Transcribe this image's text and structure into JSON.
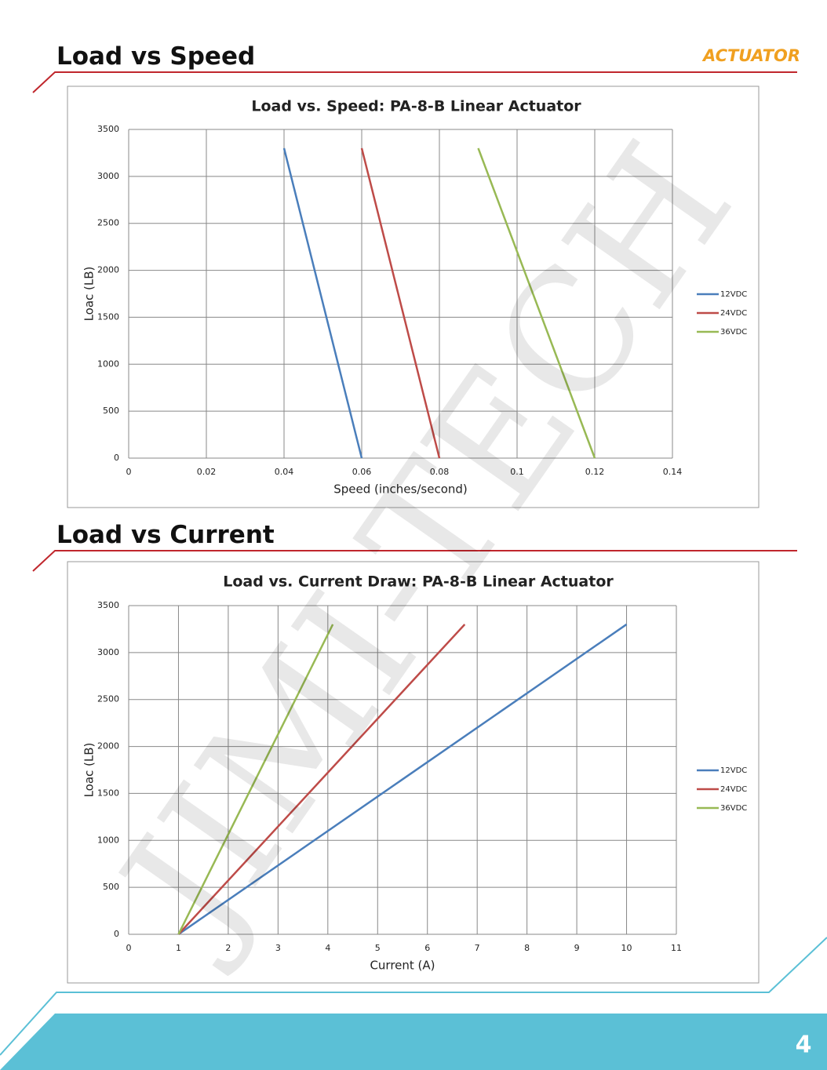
{
  "header": {
    "logo": "ACTUATOR"
  },
  "sections": [
    {
      "heading": "Load vs Speed"
    },
    {
      "heading": "Load vs Current"
    }
  ],
  "watermark": "JIMI-TECH",
  "page_number": "4",
  "chart_data": [
    {
      "type": "line",
      "title": "Load vs. Speed: PA-8-B Linear Actuator",
      "x_label": "Speed (inches/second)",
      "y_label": "Loac (LB)",
      "xlim": [
        0,
        0.14
      ],
      "xticks": [
        0,
        0.02,
        0.04,
        0.06,
        0.08,
        0.1,
        0.12,
        0.14
      ],
      "ylim": [
        0,
        3500
      ],
      "yticks": [
        0,
        500,
        1000,
        1500,
        2000,
        2500,
        3000,
        3500
      ],
      "grid": true,
      "legend": "right",
      "series": [
        {
          "name": "12VDC",
          "color": "#4a7ebb",
          "x": [
            0.04,
            0.06
          ],
          "values": [
            3300,
            0
          ]
        },
        {
          "name": "24VDC",
          "color": "#be4b48",
          "x": [
            0.06,
            0.08
          ],
          "values": [
            3300,
            0
          ]
        },
        {
          "name": "36VDC",
          "color": "#98b954",
          "x": [
            0.09,
            0.1,
            0.12
          ],
          "values": [
            3300,
            2200,
            0
          ]
        }
      ]
    },
    {
      "type": "line",
      "title": "Load vs. Current Draw: PA-8-B Linear Actuator",
      "x_label": "Current (A)",
      "y_label": "Loac (LB)",
      "xlim": [
        0,
        11
      ],
      "xticks": [
        0,
        1,
        2,
        3,
        4,
        5,
        6,
        7,
        8,
        9,
        10,
        11
      ],
      "ylim": [
        0,
        3500
      ],
      "yticks": [
        0,
        500,
        1000,
        1500,
        2000,
        2500,
        3000,
        3500
      ],
      "grid": true,
      "legend": "right",
      "series": [
        {
          "name": "12VDC",
          "color": "#4a7ebb",
          "x": [
            1,
            10
          ],
          "values": [
            0,
            3300
          ]
        },
        {
          "name": "24VDC",
          "color": "#be4b48",
          "x": [
            1,
            6.75
          ],
          "values": [
            0,
            3300
          ]
        },
        {
          "name": "36VDC",
          "color": "#98b954",
          "x": [
            1,
            4.1
          ],
          "values": [
            0,
            3300
          ]
        }
      ]
    }
  ]
}
